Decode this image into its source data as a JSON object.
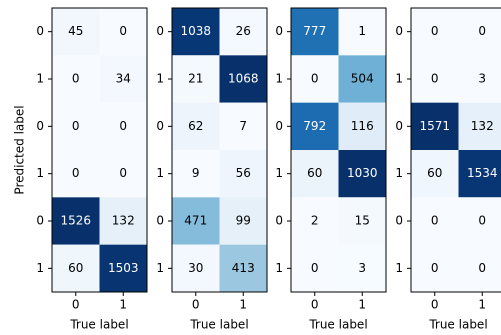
{
  "chart_data": [
    {
      "type": "heatmap",
      "xlabel": "True label",
      "ylabel": "Predicted label",
      "colormap": "Blues",
      "x_categories": [
        0,
        1
      ],
      "y_categories": [
        0,
        1,
        0,
        1,
        0,
        1
      ],
      "values": [
        [
          45,
          0
        ],
        [
          0,
          34
        ],
        [
          0,
          0
        ],
        [
          0,
          0
        ],
        [
          1526,
          132
        ],
        [
          60,
          1503
        ]
      ]
    },
    {
      "type": "heatmap",
      "xlabel": "True label",
      "colormap": "Blues",
      "x_categories": [
        0,
        1
      ],
      "y_categories": [
        0,
        1,
        0,
        1,
        0,
        1
      ],
      "values": [
        [
          1038,
          26
        ],
        [
          21,
          1068
        ],
        [
          62,
          7
        ],
        [
          9,
          56
        ],
        [
          471,
          99
        ],
        [
          30,
          413
        ]
      ]
    },
    {
      "type": "heatmap",
      "xlabel": "True label",
      "colormap": "Blues",
      "x_categories": [
        0,
        1
      ],
      "y_categories": [
        0,
        1,
        0,
        1,
        0,
        1
      ],
      "values": [
        [
          777,
          1
        ],
        [
          0,
          504
        ],
        [
          792,
          116
        ],
        [
          60,
          1030
        ],
        [
          2,
          15
        ],
        [
          0,
          3
        ]
      ]
    },
    {
      "type": "heatmap",
      "xlabel": "True label",
      "colormap": "Blues",
      "x_categories": [
        0,
        1
      ],
      "y_categories": [
        0,
        1,
        0,
        1,
        0,
        1
      ],
      "values": [
        [
          0,
          0
        ],
        [
          0,
          3
        ],
        [
          1571,
          132
        ],
        [
          60,
          1534
        ],
        [
          0,
          0
        ],
        [
          0,
          0
        ]
      ]
    }
  ]
}
